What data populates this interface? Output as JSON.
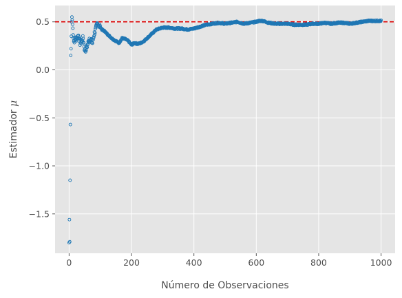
{
  "chart_data": {
    "type": "scatter",
    "title": "",
    "xlabel": "Número de Observaciones",
    "ylabel_text": "Estimador",
    "ylabel_symbol": "μ",
    "xlim": [
      -45,
      1045
    ],
    "ylim": [
      -1.91,
      0.67
    ],
    "xticks": [
      0,
      200,
      400,
      600,
      800,
      1000
    ],
    "xtick_labels": [
      "0",
      "200",
      "400",
      "600",
      "800",
      "1000"
    ],
    "yticks": [
      0.5,
      0.0,
      -0.5,
      -1.0,
      -1.5
    ],
    "ytick_labels": [
      "0.5",
      "0.0",
      "−0.5",
      "−1.0",
      "−1.5"
    ],
    "grid": true,
    "reference_line": {
      "y": 0.5,
      "style": "dashed",
      "color": "#dd0000"
    },
    "series_color": "#1f77b4",
    "background_color": "#e5e5e5",
    "trend": {
      "x": [
        0,
        1,
        2,
        3,
        4,
        5,
        6,
        7,
        8,
        9,
        10,
        12,
        15,
        20,
        25,
        30,
        35,
        40,
        45,
        50,
        55,
        60,
        65,
        70,
        75,
        80,
        85,
        90,
        95,
        100,
        105,
        110,
        115,
        120,
        130,
        140,
        150,
        160,
        170,
        180,
        190,
        200,
        210,
        220,
        230,
        240,
        250,
        260,
        270,
        280,
        290,
        300,
        320,
        340,
        360,
        380,
        400,
        420,
        440,
        460,
        480,
        500,
        520,
        540,
        560,
        580,
        600,
        610,
        620,
        630,
        640,
        660,
        680,
        700,
        720,
        740,
        760,
        780,
        800,
        820,
        840,
        860,
        880,
        900,
        920,
        940,
        960,
        980,
        1000
      ],
      "y": [
        -1.8,
        -1.56,
        -1.79,
        -1.15,
        -0.57,
        0.15,
        0.22,
        0.35,
        0.5,
        0.55,
        0.52,
        0.43,
        0.3,
        0.32,
        0.33,
        0.36,
        0.28,
        0.3,
        0.33,
        0.2,
        0.22,
        0.27,
        0.33,
        0.3,
        0.28,
        0.37,
        0.42,
        0.48,
        0.47,
        0.45,
        0.42,
        0.41,
        0.4,
        0.38,
        0.35,
        0.32,
        0.3,
        0.28,
        0.33,
        0.32,
        0.3,
        0.26,
        0.28,
        0.27,
        0.28,
        0.3,
        0.33,
        0.36,
        0.39,
        0.42,
        0.43,
        0.44,
        0.44,
        0.43,
        0.43,
        0.42,
        0.43,
        0.45,
        0.47,
        0.48,
        0.49,
        0.48,
        0.49,
        0.5,
        0.48,
        0.49,
        0.5,
        0.51,
        0.51,
        0.5,
        0.49,
        0.48,
        0.48,
        0.48,
        0.47,
        0.47,
        0.47,
        0.48,
        0.48,
        0.49,
        0.48,
        0.49,
        0.49,
        0.48,
        0.49,
        0.5,
        0.51,
        0.51,
        0.51
      ]
    }
  }
}
